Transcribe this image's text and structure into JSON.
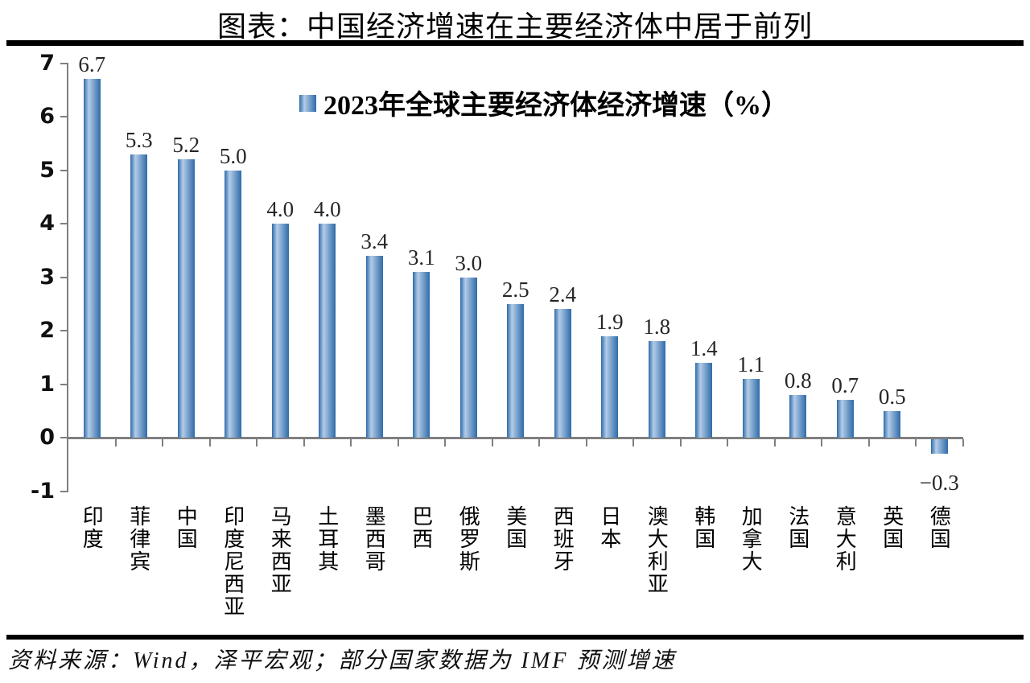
{
  "page": {
    "title": "图表：中国经济增速在主要经济体中居于前列",
    "source": "资料来源：Wind，泽平宏观；部分国家数据为 IMF 预测增速"
  },
  "chart_data": {
    "type": "bar",
    "title": "图表：中国经济增速在主要经济体中居于前列",
    "legend": "2023年全球主要经济体经济增速（%）",
    "legend_position": "top-center-inside",
    "categories": [
      "印度",
      "菲律宾",
      "中国",
      "印度尼西亚",
      "马来西亚",
      "土耳其",
      "墨西哥",
      "巴西",
      "俄罗斯",
      "美国",
      "西班牙",
      "日本",
      "澳大利亚",
      "韩国",
      "加拿大",
      "法国",
      "意大利",
      "英国",
      "德国"
    ],
    "values": [
      6.7,
      5.3,
      5.2,
      5.0,
      4.0,
      4.0,
      3.4,
      3.1,
      3.0,
      2.5,
      2.4,
      1.9,
      1.8,
      1.4,
      1.1,
      0.8,
      0.7,
      0.5,
      -0.3
    ],
    "value_labels": [
      "6.7",
      "5.3",
      "5.2",
      "5.0",
      "4.0",
      "4.0",
      "3.4",
      "3.1",
      "3.0",
      "2.5",
      "2.4",
      "1.9",
      "1.8",
      "1.4",
      "1.1",
      "0.8",
      "0.7",
      "0.5",
      "−0.3"
    ],
    "xlabel": "",
    "ylabel": "",
    "ylim": [
      -1,
      7
    ],
    "yticks": [
      "7",
      "6",
      "5",
      "4",
      "3",
      "2",
      "1",
      "0",
      "-1"
    ],
    "ytick_values": [
      7,
      6,
      5,
      4,
      3,
      2,
      1,
      0,
      -1
    ],
    "grid": false,
    "colors": {
      "bar_edge": "#2f6ba8",
      "bar_highlight": "#b3cce8",
      "axis": "#7f7f7f",
      "text": "#1a1a1a",
      "rule": "#000000"
    }
  }
}
